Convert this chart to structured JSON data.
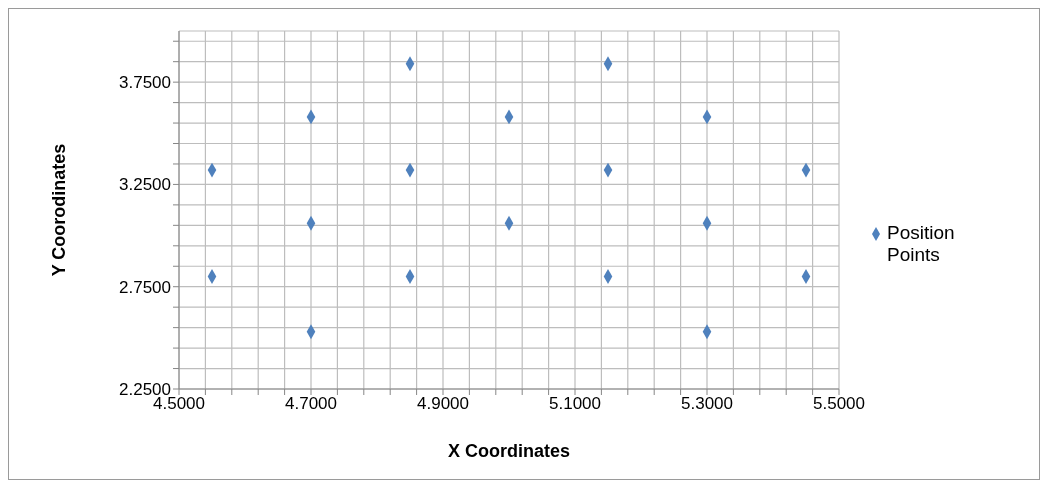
{
  "chart_data": {
    "type": "scatter",
    "xlabel": "X Coordinates",
    "ylabel": "Y  Coorodinates",
    "xlim": [
      4.5,
      5.5
    ],
    "xticks": [
      {
        "value": 4.5,
        "label": "4.5000"
      },
      {
        "value": 4.54,
        "label": null
      },
      {
        "value": 4.58,
        "label": null
      },
      {
        "value": 4.62,
        "label": null
      },
      {
        "value": 4.66,
        "label": null
      },
      {
        "value": 4.7,
        "label": "4.7000"
      },
      {
        "value": 4.74,
        "label": null
      },
      {
        "value": 4.78,
        "label": null
      },
      {
        "value": 4.82,
        "label": null
      },
      {
        "value": 4.86,
        "label": null
      },
      {
        "value": 4.9,
        "label": "4.9000"
      },
      {
        "value": 4.94,
        "label": null
      },
      {
        "value": 4.98,
        "label": null
      },
      {
        "value": 5.02,
        "label": null
      },
      {
        "value": 5.06,
        "label": null
      },
      {
        "value": 5.1,
        "label": "5.1000"
      },
      {
        "value": 5.14,
        "label": null
      },
      {
        "value": 5.18,
        "label": null
      },
      {
        "value": 5.22,
        "label": null
      },
      {
        "value": 5.26,
        "label": null
      },
      {
        "value": 5.3,
        "label": "5.3000"
      },
      {
        "value": 5.34,
        "label": null
      },
      {
        "value": 5.38,
        "label": null
      },
      {
        "value": 5.42,
        "label": null
      },
      {
        "value": 5.46,
        "label": null
      },
      {
        "value": 5.5,
        "label": "5.5000"
      }
    ],
    "ylim": [
      2.25,
      4.0
    ],
    "yticks": [
      {
        "value": 2.25,
        "label": "2.2500"
      },
      {
        "value": 2.35,
        "label": null
      },
      {
        "value": 2.45,
        "label": null
      },
      {
        "value": 2.55,
        "label": null
      },
      {
        "value": 2.65,
        "label": null
      },
      {
        "value": 2.75,
        "label": "2.7500"
      },
      {
        "value": 2.85,
        "label": null
      },
      {
        "value": 2.95,
        "label": null
      },
      {
        "value": 3.05,
        "label": null
      },
      {
        "value": 3.15,
        "label": null
      },
      {
        "value": 3.25,
        "label": "3.2500"
      },
      {
        "value": 3.35,
        "label": null
      },
      {
        "value": 3.45,
        "label": null
      },
      {
        "value": 3.55,
        "label": null
      },
      {
        "value": 3.65,
        "label": null
      },
      {
        "value": 3.75,
        "label": "3.7500"
      },
      {
        "value": 3.85,
        "label": null
      },
      {
        "value": 3.95,
        "label": null
      }
    ],
    "grid": true,
    "legend": "right",
    "marker": "diamond",
    "series": [
      {
        "name": "Position Points",
        "color": "#4f81bd",
        "x": [
          4.55,
          4.55,
          4.7,
          4.7,
          4.7,
          4.85,
          4.85,
          4.85,
          5.0,
          5.0,
          5.15,
          5.15,
          5.15,
          5.3,
          5.3,
          5.3,
          5.45,
          5.45
        ],
        "values": [
          3.32,
          2.8,
          3.58,
          3.06,
          2.53,
          3.84,
          3.32,
          2.8,
          3.58,
          3.06,
          3.84,
          3.32,
          2.8,
          3.58,
          3.06,
          2.53,
          3.32,
          2.8
        ]
      }
    ]
  }
}
